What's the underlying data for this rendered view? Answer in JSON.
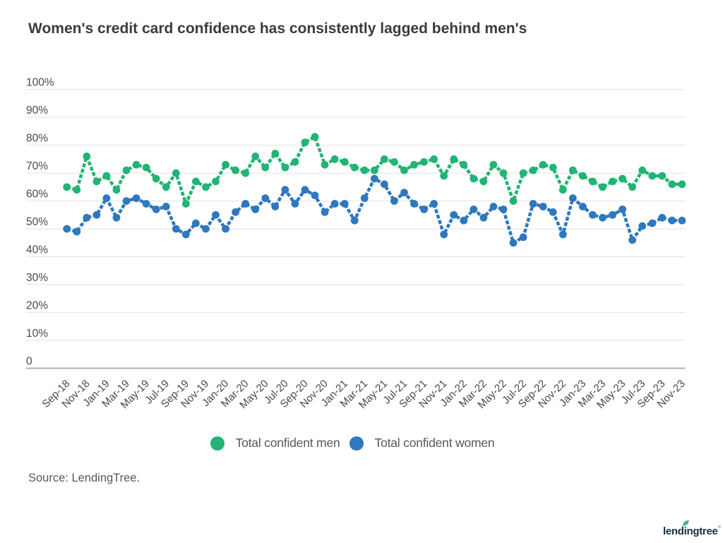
{
  "title": "Women's credit card confidence has consistently lagged behind men's",
  "source_note": "Source: LendingTree.",
  "logo_text": "lendingtree",
  "chart_data": {
    "type": "line",
    "title": "Women's credit card confidence has consistently lagged behind men's",
    "xlabel": "",
    "ylabel": "",
    "ylim": [
      0,
      100
    ],
    "grid": true,
    "legend_position": "bottom",
    "point_style": "filled-circle",
    "line_style": "dashed",
    "y_tick_labels": [
      "100%",
      "90%",
      "80%",
      "70%",
      "60%",
      "50%",
      "40%",
      "30%",
      "20%",
      "10%",
      "0"
    ],
    "categories": [
      "Sep-18",
      "Oct-18",
      "Nov-18",
      "Dec-18",
      "Jan-19",
      "Feb-19",
      "Mar-19",
      "Apr-19",
      "May-19",
      "Jun-19",
      "Jul-19",
      "Aug-19",
      "Sep-19",
      "Oct-19",
      "Nov-19",
      "Dec-19",
      "Jan-20",
      "Feb-20",
      "Mar-20",
      "Apr-20",
      "May-20",
      "Jun-20",
      "Jul-20",
      "Aug-20",
      "Sep-20",
      "Oct-20",
      "Nov-20",
      "Dec-20",
      "Jan-21",
      "Feb-21",
      "Mar-21",
      "Apr-21",
      "May-21",
      "Jun-21",
      "Jul-21",
      "Aug-21",
      "Sep-21",
      "Oct-21",
      "Nov-21",
      "Dec-21",
      "Jan-22",
      "Feb-22",
      "Mar-22",
      "Apr-22",
      "May-22",
      "Jun-22",
      "Jul-22",
      "Aug-22",
      "Sep-22",
      "Oct-22",
      "Nov-22",
      "Dec-22",
      "Jan-23",
      "Feb-23",
      "Mar-23",
      "Apr-23",
      "May-23",
      "Jun-23",
      "Jul-23",
      "Aug-23",
      "Sep-23",
      "Oct-23",
      "Nov-23"
    ],
    "x_tick_label_step": 2,
    "series": [
      {
        "name": "Total confident men",
        "color": "#22b474",
        "values": [
          65,
          64,
          76,
          67,
          69,
          64,
          71,
          73,
          72,
          68,
          65,
          70,
          59,
          67,
          65,
          67,
          73,
          71,
          70,
          76,
          72,
          77,
          72,
          74,
          81,
          83,
          73,
          75,
          74,
          72,
          71,
          71,
          75,
          74,
          71,
          73,
          74,
          75,
          69,
          75,
          73,
          68,
          67,
          73,
          70,
          60,
          70,
          71,
          73,
          72,
          64,
          71,
          69,
          67,
          65,
          67,
          68,
          65,
          71,
          69,
          69,
          66,
          66
        ]
      },
      {
        "name": "Total confident women",
        "color": "#2e78bd",
        "values": [
          50,
          49,
          54,
          55,
          61,
          54,
          60,
          61,
          59,
          57,
          58,
          50,
          48,
          52,
          50,
          55,
          50,
          56,
          59,
          57,
          61,
          58,
          64,
          59,
          64,
          62,
          56,
          59,
          59,
          53,
          61,
          68,
          66,
          60,
          63,
          59,
          57,
          59,
          48,
          55,
          53,
          57,
          54,
          58,
          57,
          45,
          47,
          59,
          58,
          56,
          48,
          61,
          58,
          55,
          54,
          55,
          57,
          46,
          51,
          52,
          54,
          53,
          53
        ]
      }
    ]
  },
  "legend": {
    "items": [
      {
        "label": "Total confident men",
        "color": "#22b474"
      },
      {
        "label": "Total confident women",
        "color": "#2e78bd"
      }
    ]
  },
  "colors": {
    "title": "#383c40",
    "axis_text": "#46494d",
    "gridline": "#e0e2e5",
    "zero_line": "#a2a6aa",
    "legend_text": "#54585d",
    "logo": "#14323d",
    "leaf": "#3cb878"
  }
}
